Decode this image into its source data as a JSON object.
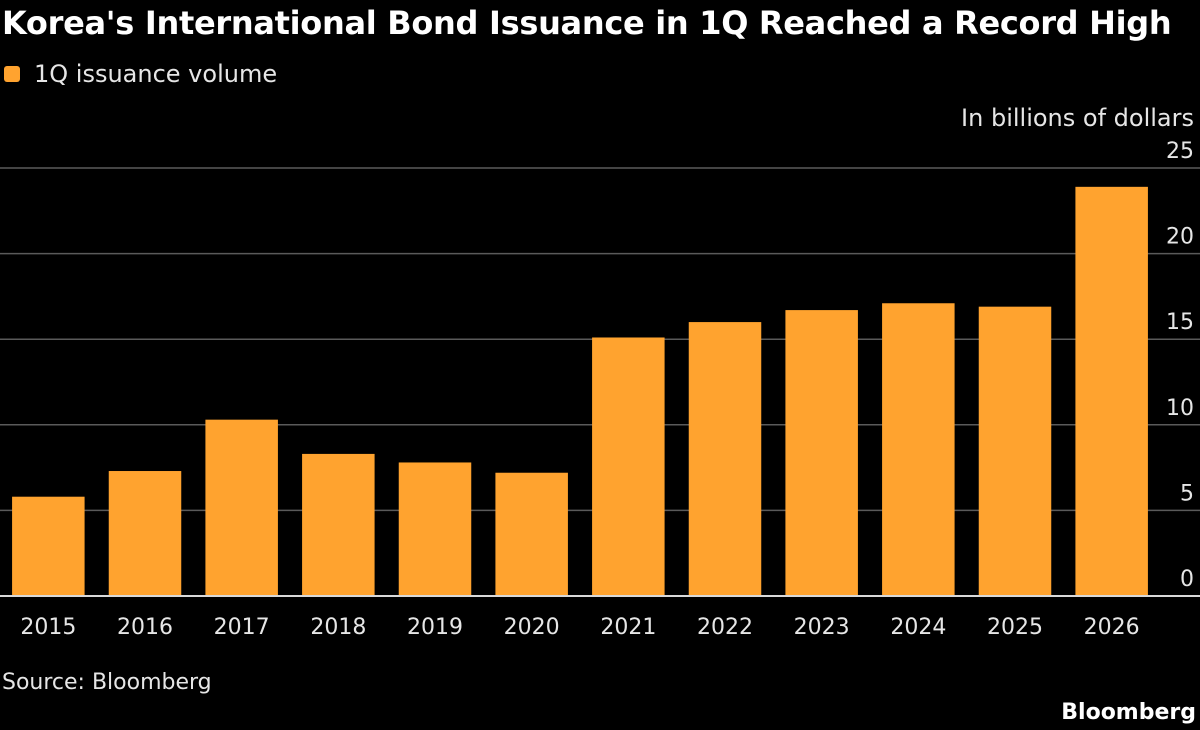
{
  "chart_data": {
    "type": "bar",
    "title": "Korea's International Bond Issuance in 1Q Reached a Record High",
    "legend": [
      {
        "label": "1Q issuance volume",
        "color": "#ffa32f"
      }
    ],
    "ylabel": "In billions of dollars",
    "xlabel": "",
    "categories": [
      "2015",
      "2016",
      "2017",
      "2018",
      "2019",
      "2020",
      "2021",
      "2022",
      "2023",
      "2024",
      "2025",
      "2026"
    ],
    "series": [
      {
        "name": "1Q issuance volume",
        "values": [
          5.8,
          7.3,
          10.3,
          8.3,
          7.8,
          7.2,
          15.1,
          16.0,
          16.7,
          17.1,
          16.9,
          23.9
        ]
      }
    ],
    "ylim": [
      0,
      25
    ],
    "yticks": [
      "0",
      "5",
      "10",
      "15",
      "20",
      "25"
    ],
    "grid": true,
    "legend_position": "top-left",
    "y_axis_position": "right"
  },
  "source": "Source: Bloomberg",
  "brand": "Bloomberg",
  "colors": {
    "bar": "#ffa32f",
    "grid": "#5a5a5a",
    "axis": "#d9d9d9",
    "background": "#000000"
  }
}
